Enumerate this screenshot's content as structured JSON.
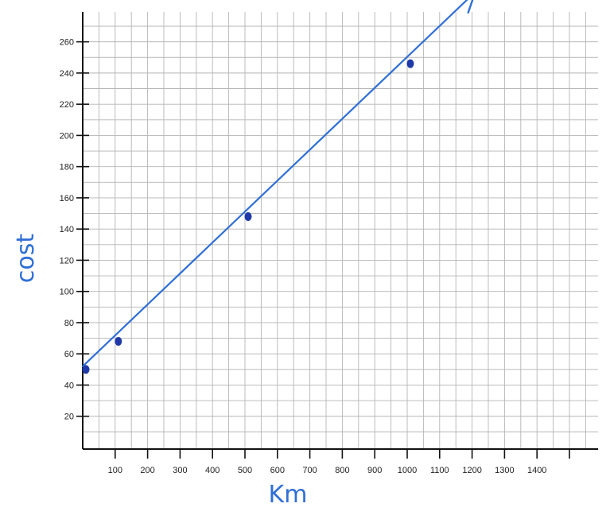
{
  "chart_data": {
    "type": "scatter",
    "xlabel": "Km",
    "ylabel": "cost",
    "x_ticks": [
      100,
      200,
      300,
      400,
      500,
      600,
      700,
      800,
      900,
      1000,
      1100,
      1200,
      1300,
      1400
    ],
    "y_ticks": [
      20,
      40,
      60,
      80,
      100,
      120,
      140,
      160,
      180,
      200,
      220,
      240,
      260
    ],
    "xlim": [
      0,
      1500
    ],
    "ylim": [
      0,
      280
    ],
    "grid": true,
    "points": [
      {
        "x": 0,
        "y": 50
      },
      {
        "x": 100,
        "y": 68
      },
      {
        "x": 500,
        "y": 148
      },
      {
        "x": 1000,
        "y": 246
      }
    ],
    "trend_line": {
      "from": {
        "x": 0,
        "y": 52
      },
      "to": {
        "x": 1210,
        "y": 292
      },
      "arrow": true
    },
    "colors": {
      "hand": "#2f6fd6",
      "point": "#1f3aa8",
      "grid": "#b5b5b5",
      "axis": "#111111"
    }
  }
}
